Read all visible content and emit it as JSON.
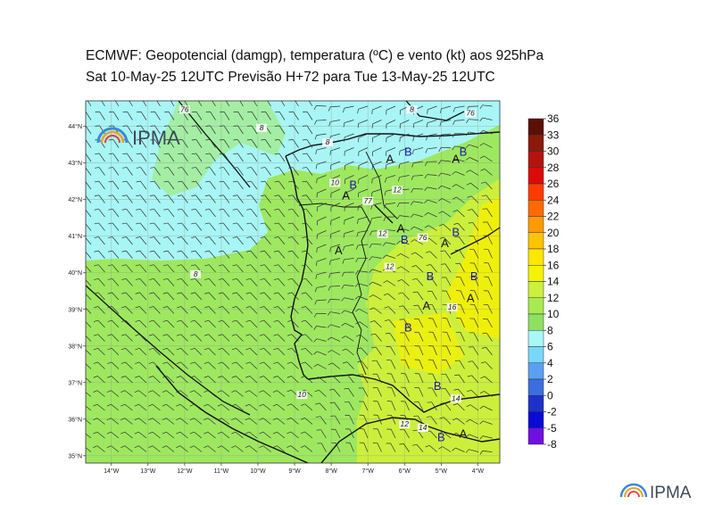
{
  "title_line1": "ECMWF:  Geopotencial (damgp), temperatura (ºC) e vento (kt) aos 925hPa",
  "title_line2": "Sat 10-May-25 12UTC Previsão H+72 para Tue 13-May-25 12UTC",
  "logo_text": "IPMA",
  "footer_logo_text": "IPMA",
  "colors": {
    "cold": "#a8f5f5",
    "mid": "#9ee860",
    "warm": "#ccef3c",
    "hot": "#f4f000"
  },
  "lat_labels": [
    "44°N",
    "43°N",
    "42°N",
    "41°N",
    "40°N",
    "39°N",
    "38°N",
    "37°N",
    "36°N",
    "35°N"
  ],
  "lon_labels": [
    "14°W",
    "13°W",
    "12°W",
    "11°W",
    "10°W",
    "9°W",
    "8°W",
    "7°W",
    "6°W",
    "5°W",
    "4°W"
  ],
  "colorbar": [
    {
      "value": "36",
      "color": "#5a1005"
    },
    {
      "value": "33",
      "color": "#8a1a0a"
    },
    {
      "value": "30",
      "color": "#b4140e"
    },
    {
      "value": "28",
      "color": "#dd0a0a"
    },
    {
      "value": "26",
      "color": "#ff3a00"
    },
    {
      "value": "24",
      "color": "#ff6a00"
    },
    {
      "value": "22",
      "color": "#ff9a00"
    },
    {
      "value": "20",
      "color": "#ffc400"
    },
    {
      "value": "18",
      "color": "#ffe600"
    },
    {
      "value": "16",
      "color": "#f4f400"
    },
    {
      "value": "14",
      "color": "#ccf03c"
    },
    {
      "value": "12",
      "color": "#a8ea50"
    },
    {
      "value": "10",
      "color": "#8ee060"
    },
    {
      "value": "8",
      "color": "#a8f8f8"
    },
    {
      "value": "6",
      "color": "#78d8f8"
    },
    {
      "value": "4",
      "color": "#5aa0f0"
    },
    {
      "value": "2",
      "color": "#3c6ee0"
    },
    {
      "value": "0",
      "color": "#1e32c8"
    },
    {
      "value": "-2",
      "color": "#0a0ad8"
    },
    {
      "value": "-5",
      "color": "#7010e0"
    },
    {
      "value": "-8",
      "color": "#e010e8"
    }
  ],
  "pressure_marks": [
    {
      "letter": "A",
      "lat": 43.0,
      "lon": -6.4,
      "color": "#111"
    },
    {
      "letter": "B",
      "lat": 43.2,
      "lon": -5.9,
      "color": "#1a1aa0"
    },
    {
      "letter": "B",
      "lat": 43.2,
      "lon": -4.4,
      "color": "#1a1aa0"
    },
    {
      "letter": "A",
      "lat": 43.0,
      "lon": -4.6,
      "color": "#111"
    },
    {
      "letter": "B",
      "lat": 42.3,
      "lon": -7.4,
      "color": "#1a1aa0"
    },
    {
      "letter": "A",
      "lat": 42.0,
      "lon": -7.6,
      "color": "#111"
    },
    {
      "letter": "A",
      "lat": 41.1,
      "lon": -6.1,
      "color": "#111"
    },
    {
      "letter": "B",
      "lat": 40.8,
      "lon": -6.0,
      "color": "#1a1aa0"
    },
    {
      "letter": "B",
      "lat": 41.0,
      "lon": -4.6,
      "color": "#1a1aa0"
    },
    {
      "letter": "A",
      "lat": 40.7,
      "lon": -4.9,
      "color": "#111"
    },
    {
      "letter": "A",
      "lat": 40.5,
      "lon": -7.8,
      "color": "#111"
    },
    {
      "letter": "B",
      "lat": 39.8,
      "lon": -5.3,
      "color": "#1a1aa0"
    },
    {
      "letter": "B",
      "lat": 39.8,
      "lon": -4.1,
      "color": "#1a1aa0"
    },
    {
      "letter": "A",
      "lat": 39.2,
      "lon": -4.2,
      "color": "#111"
    },
    {
      "letter": "A",
      "lat": 39.0,
      "lon": -5.4,
      "color": "#111"
    },
    {
      "letter": "B",
      "lat": 38.4,
      "lon": -5.9,
      "color": "#1a1aa0"
    },
    {
      "letter": "B",
      "lat": 36.8,
      "lon": -5.1,
      "color": "#1a1aa0"
    },
    {
      "letter": "B",
      "lat": 35.4,
      "lon": -5.0,
      "color": "#1a1aa0"
    },
    {
      "letter": "A",
      "lat": 35.5,
      "lon": -4.4,
      "color": "#111"
    }
  ],
  "contour_labels": [
    {
      "text": "12",
      "lat": 42.2,
      "lon": -6.2
    },
    {
      "text": "10",
      "lat": 42.4,
      "lon": -7.9
    },
    {
      "text": "12",
      "lat": 41.0,
      "lon": -6.6
    },
    {
      "text": "12",
      "lat": 40.1,
      "lon": -6.4
    },
    {
      "text": "16",
      "lat": 39.0,
      "lon": -4.7
    },
    {
      "text": "10",
      "lat": 36.6,
      "lon": -8.8
    },
    {
      "text": "14",
      "lat": 36.5,
      "lon": -4.6
    },
    {
      "text": "12",
      "lat": 35.8,
      "lon": -6.0
    },
    {
      "text": "14",
      "lat": 35.7,
      "lon": -5.5
    },
    {
      "text": "8",
      "lat": 43.9,
      "lon": -9.9
    },
    {
      "text": "8",
      "lat": 43.5,
      "lon": -8.1
    },
    {
      "text": "8",
      "lat": 39.9,
      "lon": -11.7
    },
    {
      "text": "76",
      "lat": 44.4,
      "lon": -12.0
    },
    {
      "text": "76",
      "lat": 44.3,
      "lon": -4.2
    },
    {
      "text": "76",
      "lat": 40.9,
      "lon": -5.5
    },
    {
      "text": "8",
      "lat": 44.4,
      "lon": -5.8
    },
    {
      "text": "77",
      "lat": 41.9,
      "lon": -7.0
    }
  ]
}
